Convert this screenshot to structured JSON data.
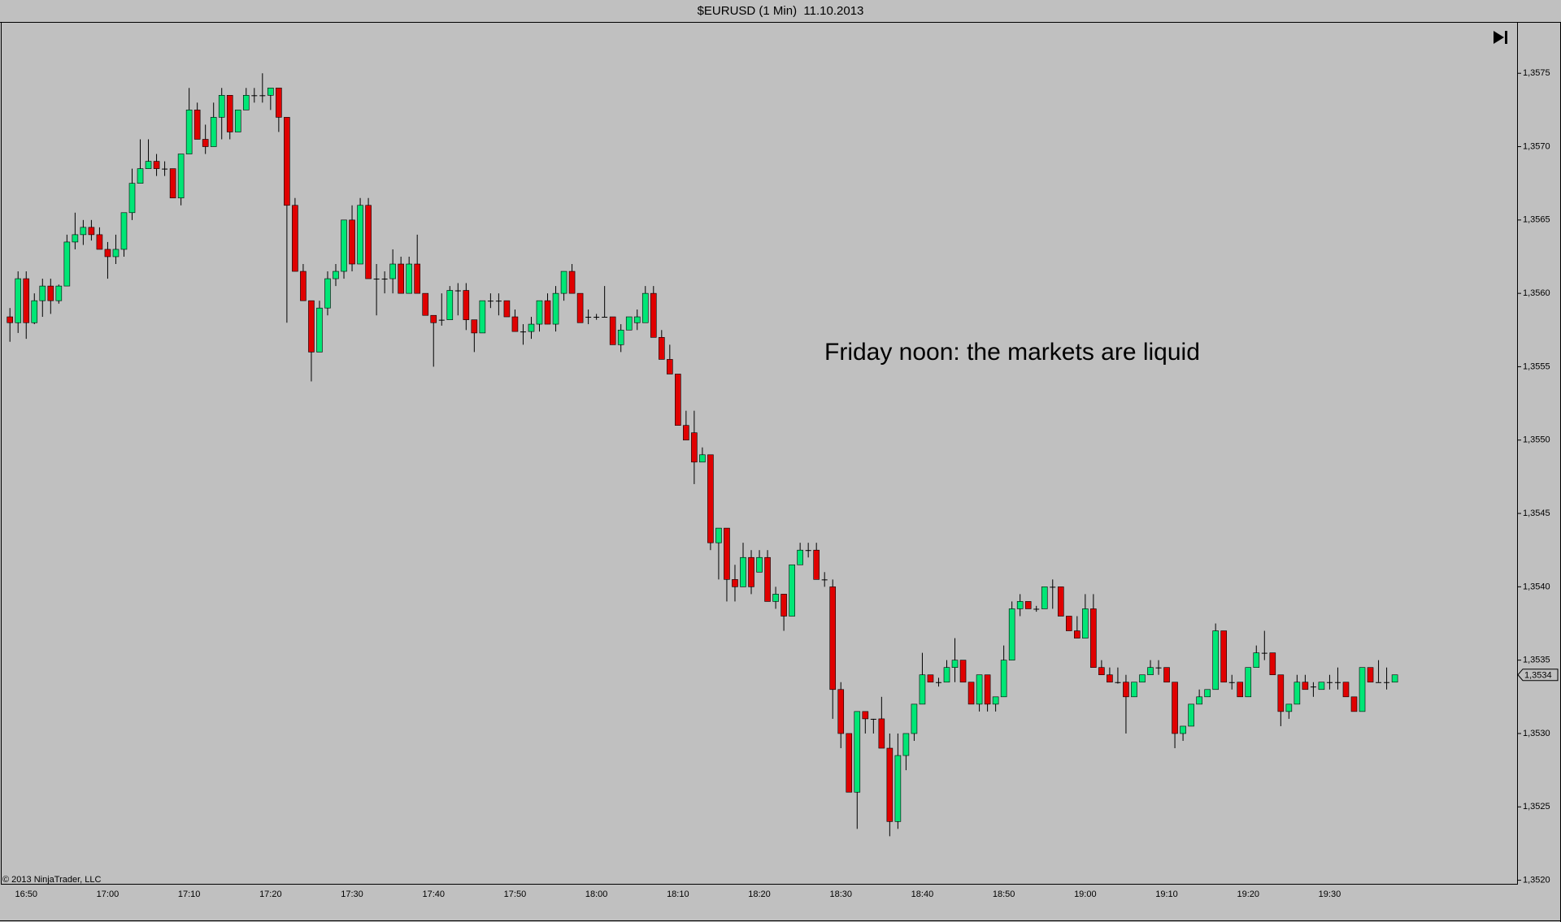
{
  "chart_data": {
    "type": "candlestick",
    "title": "$EURUSD (1 Min)  11.10.2013",
    "annotation": "Friday noon: the markets are liquid",
    "copyright": "© 2013 NinjaTrader, LLC",
    "up_color": "#00e676",
    "down_color": "#e00000",
    "doji_color": "#000000",
    "background": "#c0c0c0",
    "ylim": [
      1.35197,
      1.35785
    ],
    "yticks": [
      {
        "value": 1.352,
        "label": "1,3520"
      },
      {
        "value": 1.3525,
        "label": "1,3525"
      },
      {
        "value": 1.353,
        "label": "1,3530"
      },
      {
        "value": 1.3535,
        "label": "1,3535"
      },
      {
        "value": 1.354,
        "label": "1,3540"
      },
      {
        "value": 1.3545,
        "label": "1,3545"
      },
      {
        "value": 1.355,
        "label": "1,3550"
      },
      {
        "value": 1.3555,
        "label": "1,3555"
      },
      {
        "value": 1.356,
        "label": "1,3560"
      },
      {
        "value": 1.3565,
        "label": "1,3565"
      },
      {
        "value": 1.357,
        "label": "1,3570"
      },
      {
        "value": 1.3575,
        "label": "1,3575"
      }
    ],
    "last_price": {
      "value": 1.3534,
      "label": "1,3534"
    },
    "categories": [
      null,
      null,
      "16:50",
      null,
      null,
      null,
      null,
      null,
      null,
      null,
      null,
      null,
      "17:00",
      null,
      null,
      null,
      null,
      null,
      null,
      null,
      null,
      null,
      "17:10",
      null,
      null,
      null,
      null,
      null,
      null,
      null,
      null,
      null,
      "17:20",
      null,
      null,
      null,
      null,
      null,
      null,
      null,
      null,
      null,
      "17:30",
      null,
      null,
      null,
      null,
      null,
      null,
      null,
      null,
      null,
      "17:40",
      null,
      null,
      null,
      null,
      null,
      null,
      null,
      null,
      null,
      "17:50",
      null,
      null,
      null,
      null,
      null,
      null,
      null,
      null,
      null,
      "18:00",
      null,
      null,
      null,
      null,
      null,
      null,
      null,
      null,
      null,
      "18:10",
      null,
      null,
      null,
      null,
      null,
      null,
      null,
      null,
      null,
      "18:20",
      null,
      null,
      null,
      null,
      null,
      null,
      null,
      null,
      null,
      "18:30",
      null,
      null,
      null,
      null,
      null,
      null,
      null,
      null,
      null,
      "18:40",
      null,
      null,
      null,
      null,
      null,
      null,
      null,
      null,
      null,
      "18:50",
      null,
      null,
      null,
      null,
      null,
      null,
      null,
      null,
      null,
      "19:00",
      null,
      null,
      null,
      null,
      null,
      null,
      null,
      null,
      null,
      "19:10",
      null,
      null,
      null,
      null,
      null,
      null,
      null,
      null,
      null,
      "19:20",
      null,
      null,
      null,
      null,
      null,
      null,
      null,
      null,
      null,
      "19:30",
      null,
      null,
      null,
      null,
      null,
      null,
      null,
      null
    ],
    "open": [
      1.35584,
      1.3558,
      1.3561,
      1.3558,
      1.35595,
      1.35605,
      1.35595,
      1.35605,
      1.35635,
      1.3564,
      1.35645,
      1.3564,
      1.3563,
      1.35625,
      1.3563,
      1.35655,
      1.35675,
      1.35685,
      1.3569,
      1.35685,
      1.35685,
      1.35665,
      1.35695,
      1.35725,
      1.35705,
      1.357,
      1.3572,
      1.35735,
      1.3571,
      1.35725,
      1.35735,
      1.35735,
      1.35735,
      1.3574,
      1.3572,
      1.3566,
      1.35615,
      1.35595,
      1.3556,
      1.3559,
      1.3561,
      1.35615,
      1.3565,
      1.3562,
      1.3566,
      1.3561,
      1.3561,
      1.3561,
      1.3562,
      1.356,
      1.3562,
      1.356,
      1.35585,
      1.35582,
      1.35582,
      1.35602,
      1.35602,
      1.35582,
      1.35573,
      1.35595,
      1.35595,
      1.35595,
      1.35584,
      1.35574,
      1.35574,
      1.35579,
      1.35595,
      1.35579,
      1.356,
      1.35615,
      1.356,
      1.35584,
      1.35584,
      1.35584,
      1.35584,
      1.35565,
      1.35575,
      1.3558,
      1.3558,
      1.356,
      1.3557,
      1.35555,
      1.35545,
      1.3551,
      1.35505,
      1.35485,
      1.3549,
      1.3543,
      1.3544,
      1.35405,
      1.354,
      1.3542,
      1.3541,
      1.3542,
      1.3539,
      1.35395,
      1.3538,
      1.35415,
      1.35425,
      1.35425,
      1.35405,
      1.354,
      1.3533,
      1.353,
      1.3526,
      1.35315,
      1.3531,
      1.3531,
      1.3529,
      1.3524,
      1.35285,
      1.353,
      1.3532,
      1.3534,
      1.35335,
      1.35335,
      1.35345,
      1.3535,
      1.35335,
      1.3532,
      1.3534,
      1.3532,
      1.35325,
      1.3535,
      1.35385,
      1.3539,
      1.35385,
      1.35385,
      1.354,
      1.354,
      1.3538,
      1.3537,
      1.35365,
      1.35385,
      1.35345,
      1.3534,
      1.35335,
      1.35335,
      1.35325,
      1.35335,
      1.3534,
      1.35345,
      1.35345,
      1.35335,
      1.353,
      1.35305,
      1.3532,
      1.35325,
      1.3533,
      1.3537,
      1.35335,
      1.35335,
      1.35325,
      1.35345,
      1.35355,
      1.35355,
      1.3534,
      1.35315,
      1.3532,
      1.35335,
      1.35332,
      1.3533,
      1.35335,
      1.35335,
      1.35335,
      1.35325,
      1.35315,
      1.35345,
      1.35335,
      1.35335,
      1.35335
    ],
    "high": [
      1.3559,
      1.35615,
      1.35615,
      1.356,
      1.3561,
      1.3561,
      1.35606,
      1.3564,
      1.35655,
      1.3565,
      1.3565,
      1.35645,
      1.35635,
      1.3564,
      1.35655,
      1.35685,
      1.35705,
      1.35705,
      1.35695,
      1.3569,
      1.35685,
      1.35695,
      1.3574,
      1.3573,
      1.35715,
      1.3573,
      1.3574,
      1.35735,
      1.35725,
      1.3574,
      1.3574,
      1.3575,
      1.3574,
      1.3574,
      1.3572,
      1.35665,
      1.3562,
      1.35595,
      1.35595,
      1.35615,
      1.3562,
      1.3565,
      1.3566,
      1.35665,
      1.35665,
      1.3562,
      1.35615,
      1.3563,
      1.35625,
      1.35625,
      1.3564,
      1.356,
      1.35585,
      1.356,
      1.35605,
      1.35607,
      1.35607,
      1.35582,
      1.35595,
      1.356,
      1.356,
      1.35595,
      1.35589,
      1.35579,
      1.35584,
      1.35595,
      1.356,
      1.35605,
      1.35615,
      1.3562,
      1.356,
      1.35589,
      1.35586,
      1.35605,
      1.35584,
      1.35579,
      1.35584,
      1.35589,
      1.35605,
      1.35605,
      1.35575,
      1.35565,
      1.35545,
      1.3552,
      1.3552,
      1.35495,
      1.3549,
      1.3544,
      1.3544,
      1.35415,
      1.3543,
      1.35425,
      1.35425,
      1.35425,
      1.354,
      1.35395,
      1.35415,
      1.3543,
      1.3543,
      1.3543,
      1.3541,
      1.35405,
      1.35335,
      1.353,
      1.35315,
      1.35315,
      1.3531,
      1.35325,
      1.353,
      1.353,
      1.353,
      1.3532,
      1.35355,
      1.3534,
      1.35338,
      1.3535,
      1.35365,
      1.3535,
      1.35335,
      1.3534,
      1.3534,
      1.35325,
      1.3536,
      1.3539,
      1.35395,
      1.3539,
      1.35387,
      1.354,
      1.35405,
      1.354,
      1.3538,
      1.3538,
      1.35395,
      1.35395,
      1.3535,
      1.35345,
      1.35345,
      1.3534,
      1.35335,
      1.3534,
      1.3535,
      1.3535,
      1.35345,
      1.35335,
      1.35305,
      1.3532,
      1.3533,
      1.3533,
      1.35375,
      1.3537,
      1.3534,
      1.35335,
      1.35345,
      1.3536,
      1.3537,
      1.35355,
      1.3534,
      1.3532,
      1.3534,
      1.3534,
      1.35335,
      1.35335,
      1.3534,
      1.35345,
      1.35335,
      1.35325,
      1.35345,
      1.35345,
      1.3535,
      1.35345,
      1.3534
    ],
    "low": [
      1.35567,
      1.35573,
      1.35569,
      1.35579,
      1.35584,
      1.35586,
      1.35593,
      1.35605,
      1.3563,
      1.35633,
      1.35636,
      1.3563,
      1.3561,
      1.3562,
      1.35625,
      1.3565,
      1.35675,
      1.35685,
      1.3568,
      1.3568,
      1.35665,
      1.3566,
      1.35695,
      1.35705,
      1.35695,
      1.357,
      1.35705,
      1.35705,
      1.3571,
      1.35725,
      1.3573,
      1.3573,
      1.35725,
      1.3571,
      1.3558,
      1.35615,
      1.35595,
      1.3554,
      1.3556,
      1.35585,
      1.35605,
      1.3561,
      1.35615,
      1.3562,
      1.3561,
      1.35585,
      1.356,
      1.356,
      1.356,
      1.356,
      1.356,
      1.35585,
      1.3555,
      1.35578,
      1.35582,
      1.35585,
      1.35575,
      1.3556,
      1.35573,
      1.3559,
      1.35585,
      1.35584,
      1.35574,
      1.35565,
      1.35569,
      1.35574,
      1.35579,
      1.35574,
      1.35595,
      1.356,
      1.3558,
      1.35579,
      1.35582,
      1.35584,
      1.35565,
      1.3556,
      1.35575,
      1.35575,
      1.3558,
      1.3557,
      1.35555,
      1.35545,
      1.3551,
      1.355,
      1.3547,
      1.35485,
      1.35425,
      1.35405,
      1.3539,
      1.3539,
      1.354,
      1.35395,
      1.3541,
      1.3539,
      1.35385,
      1.3537,
      1.3538,
      1.35415,
      1.3542,
      1.35405,
      1.354,
      1.3531,
      1.3529,
      1.3526,
      1.35235,
      1.353,
      1.353,
      1.3529,
      1.3523,
      1.35235,
      1.35275,
      1.35295,
      1.3532,
      1.35335,
      1.35332,
      1.35335,
      1.35335,
      1.35335,
      1.3532,
      1.35315,
      1.35315,
      1.35315,
      1.35325,
      1.3535,
      1.3538,
      1.35385,
      1.35383,
      1.35385,
      1.35385,
      1.3538,
      1.3537,
      1.35365,
      1.35365,
      1.35345,
      1.3534,
      1.35335,
      1.35334,
      1.353,
      1.35325,
      1.35335,
      1.3534,
      1.3534,
      1.35335,
      1.3529,
      1.35295,
      1.35305,
      1.3532,
      1.35325,
      1.3533,
      1.35335,
      1.3533,
      1.35325,
      1.35325,
      1.35345,
      1.3535,
      1.3534,
      1.35305,
      1.3531,
      1.3532,
      1.3533,
      1.35325,
      1.3533,
      1.3533,
      1.3533,
      1.35325,
      1.35315,
      1.35315,
      1.35335,
      1.35335,
      1.3533,
      1.35335
    ],
    "close": [
      1.3558,
      1.3561,
      1.3558,
      1.35595,
      1.35605,
      1.35595,
      1.35605,
      1.35635,
      1.3564,
      1.35645,
      1.3564,
      1.3563,
      1.35625,
      1.3563,
      1.35655,
      1.35675,
      1.35685,
      1.3569,
      1.35685,
      1.35685,
      1.35665,
      1.35695,
      1.35725,
      1.35705,
      1.357,
      1.3572,
      1.35735,
      1.3571,
      1.35725,
      1.35735,
      1.35735,
      1.35735,
      1.3574,
      1.3572,
      1.3566,
      1.35615,
      1.35595,
      1.3556,
      1.3559,
      1.3561,
      1.35615,
      1.3565,
      1.3562,
      1.3566,
      1.3561,
      1.3561,
      1.3561,
      1.3562,
      1.356,
      1.3562,
      1.356,
      1.35585,
      1.3558,
      1.35582,
      1.35602,
      1.35602,
      1.35582,
      1.35573,
      1.35595,
      1.35595,
      1.35595,
      1.35584,
      1.35574,
      1.35574,
      1.35579,
      1.35595,
      1.35579,
      1.356,
      1.35615,
      1.356,
      1.3558,
      1.35584,
      1.35584,
      1.35584,
      1.35565,
      1.35575,
      1.35584,
      1.35584,
      1.356,
      1.3557,
      1.35555,
      1.35545,
      1.3551,
      1.355,
      1.35485,
      1.3549,
      1.3543,
      1.3544,
      1.35405,
      1.354,
      1.3542,
      1.354,
      1.3542,
      1.3539,
      1.35395,
      1.3538,
      1.35415,
      1.35425,
      1.35425,
      1.35405,
      1.35405,
      1.3533,
      1.353,
      1.3526,
      1.35315,
      1.3531,
      1.3531,
      1.3529,
      1.3524,
      1.35285,
      1.353,
      1.3532,
      1.3534,
      1.35335,
      1.35335,
      1.35345,
      1.3535,
      1.35335,
      1.3532,
      1.3534,
      1.3532,
      1.35325,
      1.3535,
      1.35385,
      1.3539,
      1.35385,
      1.35385,
      1.354,
      1.354,
      1.3538,
      1.3537,
      1.35365,
      1.35385,
      1.35345,
      1.3534,
      1.35335,
      1.35335,
      1.35325,
      1.35335,
      1.3534,
      1.35345,
      1.35345,
      1.35335,
      1.353,
      1.35305,
      1.3532,
      1.35325,
      1.3533,
      1.3537,
      1.35335,
      1.35335,
      1.35325,
      1.35345,
      1.35355,
      1.35355,
      1.3534,
      1.35315,
      1.3532,
      1.35335,
      1.3533,
      1.35332,
      1.35335,
      1.35335,
      1.35335,
      1.35325,
      1.35315,
      1.35345,
      1.35335,
      1.35335,
      1.35335,
      1.3534
    ]
  }
}
